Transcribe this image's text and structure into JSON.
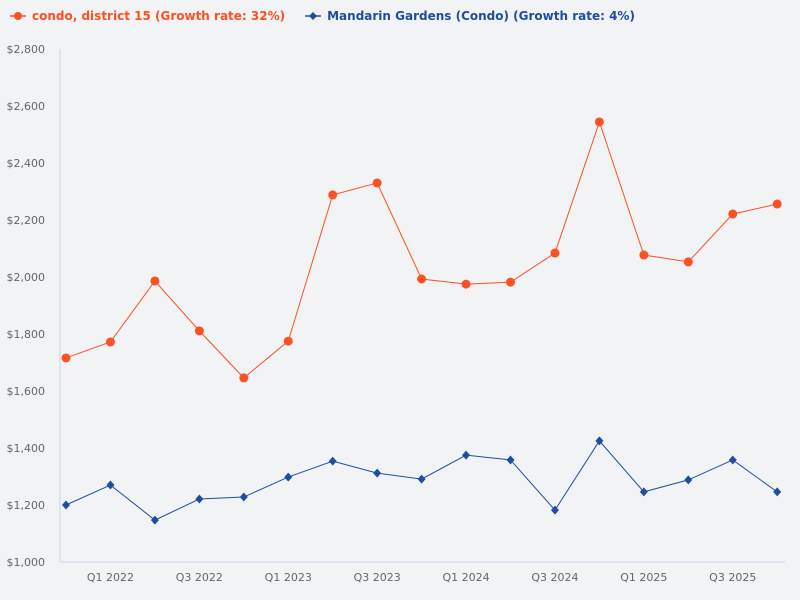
{
  "chart_data": {
    "type": "line",
    "title": "",
    "xlabel": "",
    "ylabel": "",
    "ylim": [
      1000,
      2800
    ],
    "yticks": [
      "$1,000",
      "$1,200",
      "$1,400",
      "$1,600",
      "$1,800",
      "$2,000",
      "$2,200",
      "$2,400",
      "$2,600",
      "$2,800"
    ],
    "ytick_values": [
      1000,
      1200,
      1400,
      1600,
      1800,
      2000,
      2200,
      2400,
      2600,
      2800
    ],
    "categories": [
      "",
      "Q1 2022",
      "",
      "Q3 2022",
      "",
      "Q1 2023",
      "",
      "Q3 2023",
      "",
      "Q1 2024",
      "",
      "Q3 2024",
      "",
      "Q1 2025",
      "",
      "Q3 2025",
      ""
    ],
    "grid": false,
    "legend_placement": "top-left",
    "series": [
      {
        "name": "condo, district 15 (Growth rate: 32%)",
        "color": "#fc5123",
        "marker": "circle",
        "values": [
          1716,
          1772,
          1986,
          1811,
          1646,
          1775,
          2288,
          2330,
          1993,
          1975,
          1982,
          2084,
          2544,
          2077,
          2053,
          2221,
          2256
        ]
      },
      {
        "name": "Mandarin Gardens (Condo) (Growth rate: 4%)",
        "color": "#1f4ea1",
        "marker": "diamond",
        "values": [
          1200,
          1270,
          1147,
          1221,
          1228,
          1298,
          1354,
          1312,
          1291,
          1375,
          1358,
          1182,
          1425,
          1246,
          1288,
          1358,
          1246
        ]
      }
    ]
  }
}
